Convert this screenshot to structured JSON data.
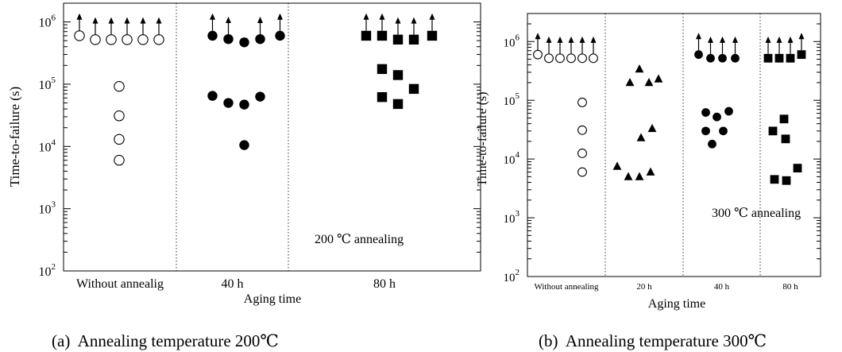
{
  "chart_data": [
    {
      "type": "scatter",
      "caption": "(a)  Annealing temperature 200℃",
      "xlabel": "Aging time",
      "ylabel": "Time-to-failure    (s)",
      "yscale": "log",
      "ylim": [
        100,
        2000000
      ],
      "yticks": [
        100,
        1000,
        10000,
        100000,
        1000000
      ],
      "ytick_labels": [
        [
          "10",
          "2"
        ],
        [
          "10",
          "3"
        ],
        [
          "10",
          "4"
        ],
        [
          "10",
          "5"
        ],
        [
          "10",
          "6"
        ]
      ],
      "annotation": "200 ℃ annealing",
      "categories": [
        "Without annealig",
        "40 h",
        "80 h"
      ],
      "series": [
        {
          "category": "Without annealig",
          "marker": "open-circle",
          "points": [
            {
              "y": 600000,
              "runout": true
            },
            {
              "y": 520000,
              "runout": true
            },
            {
              "y": 520000,
              "runout": true
            },
            {
              "y": 520000,
              "runout": true
            },
            {
              "y": 520000,
              "runout": true
            },
            {
              "y": 520000,
              "runout": true
            },
            {
              "y": 92000,
              "runout": false
            },
            {
              "y": 31000,
              "runout": false
            },
            {
              "y": 13000,
              "runout": false
            },
            {
              "y": 6000,
              "runout": false
            }
          ]
        },
        {
          "category": "40 h",
          "marker": "filled-circle",
          "points": [
            {
              "y": 600000,
              "runout": true
            },
            {
              "y": 530000,
              "runout": true
            },
            {
              "y": 470000,
              "runout": false
            },
            {
              "y": 530000,
              "runout": true
            },
            {
              "y": 600000,
              "runout": true
            },
            {
              "y": 65000,
              "runout": false
            },
            {
              "y": 50000,
              "runout": false
            },
            {
              "y": 47000,
              "runout": false
            },
            {
              "y": 63000,
              "runout": false
            },
            {
              "y": 10500,
              "runout": false
            }
          ]
        },
        {
          "category": "80 h",
          "marker": "filled-square",
          "points": [
            {
              "y": 600000,
              "runout": true
            },
            {
              "y": 600000,
              "runout": true
            },
            {
              "y": 520000,
              "runout": true
            },
            {
              "y": 520000,
              "runout": true
            },
            {
              "y": 600000,
              "runout": true
            },
            {
              "y": 175000,
              "runout": false
            },
            {
              "y": 140000,
              "runout": false
            },
            {
              "y": 84000,
              "runout": false
            },
            {
              "y": 62000,
              "runout": false
            },
            {
              "y": 48000,
              "runout": false
            }
          ]
        }
      ]
    },
    {
      "type": "scatter",
      "caption": "(b)  Annealing temperature 300℃",
      "xlabel": "Aging time",
      "ylabel": "Time-to-failure    (s)",
      "yscale": "log",
      "ylim": [
        100,
        3000000
      ],
      "yticks": [
        100,
        1000,
        10000,
        100000,
        1000000
      ],
      "ytick_labels": [
        [
          "10",
          "2"
        ],
        [
          "10",
          "3"
        ],
        [
          "10",
          "4"
        ],
        [
          "10",
          "5"
        ],
        [
          "10",
          "6"
        ]
      ],
      "annotation": "300 ℃ annealing",
      "categories": [
        "Without annealing",
        "20 h",
        "40 h",
        "80 h"
      ],
      "series": [
        {
          "category": "Without annealing",
          "marker": "open-circle",
          "points": [
            {
              "y": 600000,
              "runout": true
            },
            {
              "y": 520000,
              "runout": true
            },
            {
              "y": 520000,
              "runout": true
            },
            {
              "y": 520000,
              "runout": true
            },
            {
              "y": 520000,
              "runout": true
            },
            {
              "y": 520000,
              "runout": true
            },
            {
              "y": 92000,
              "runout": false
            },
            {
              "y": 31000,
              "runout": false
            },
            {
              "y": 12500,
              "runout": false
            },
            {
              "y": 6000,
              "runout": false
            }
          ]
        },
        {
          "category": "20 h",
          "marker": "filled-triangle",
          "points": [
            {
              "y": 7500,
              "runout": false
            },
            {
              "y": 5000,
              "runout": false
            },
            {
              "y": 5000,
              "runout": false
            },
            {
              "y": 6000,
              "runout": false
            },
            {
              "y": 200000,
              "runout": false
            },
            {
              "y": 340000,
              "runout": false
            },
            {
              "y": 200000,
              "runout": false
            },
            {
              "y": 230000,
              "runout": false
            },
            {
              "y": 23000,
              "runout": false
            },
            {
              "y": 33000,
              "runout": false
            }
          ]
        },
        {
          "category": "40 h",
          "marker": "filled-circle",
          "points": [
            {
              "y": 600000,
              "runout": true
            },
            {
              "y": 520000,
              "runout": true
            },
            {
              "y": 520000,
              "runout": true
            },
            {
              "y": 520000,
              "runout": true
            },
            {
              "y": 62000,
              "runout": false
            },
            {
              "y": 52000,
              "runout": false
            },
            {
              "y": 65000,
              "runout": false
            },
            {
              "y": 30000,
              "runout": false
            },
            {
              "y": 30000,
              "runout": false
            },
            {
              "y": 18000,
              "runout": false
            }
          ]
        },
        {
          "category": "80 h",
          "marker": "filled-square",
          "points": [
            {
              "y": 520000,
              "runout": true
            },
            {
              "y": 520000,
              "runout": true
            },
            {
              "y": 520000,
              "runout": true
            },
            {
              "y": 600000,
              "runout": true
            },
            {
              "y": 30000,
              "runout": false
            },
            {
              "y": 48000,
              "runout": false
            },
            {
              "y": 22000,
              "runout": false
            },
            {
              "y": 4500,
              "runout": false
            },
            {
              "y": 4300,
              "runout": false
            },
            {
              "y": 7000,
              "runout": false
            }
          ]
        }
      ]
    }
  ]
}
